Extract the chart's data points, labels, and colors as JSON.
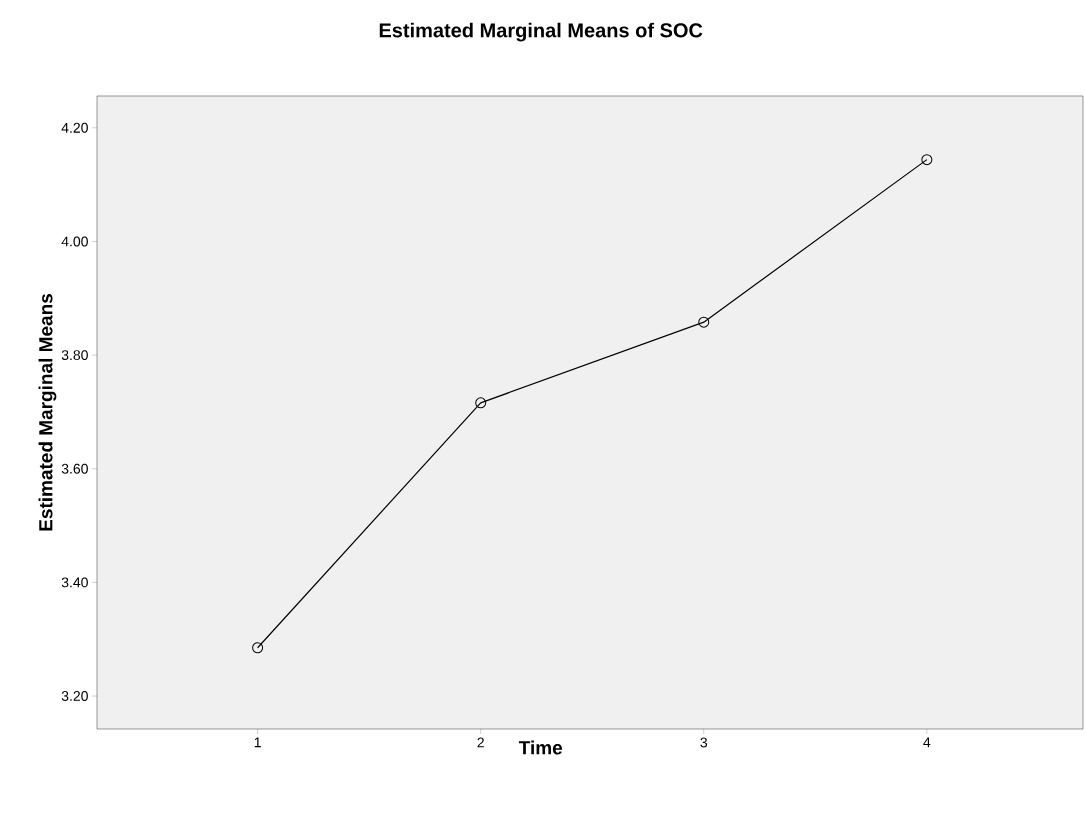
{
  "chart_data": {
    "type": "line",
    "title": "Estimated Marginal Means of SOC",
    "xlabel": "Time",
    "ylabel": "Estimated Marginal Means",
    "categories": [
      "1",
      "2",
      "3",
      "4"
    ],
    "values": [
      3.285,
      3.716,
      3.858,
      4.144
    ],
    "color": "#000000",
    "marker": "circle",
    "line_style": "solid",
    "grid": false,
    "ylim": [
      3.142,
      4.256
    ],
    "yticks": [
      {
        "value": 3.2,
        "label": "3.20"
      },
      {
        "value": 3.4,
        "label": "3.40"
      },
      {
        "value": 3.6,
        "label": "3.60"
      },
      {
        "value": 3.8,
        "label": "3.80"
      },
      {
        "value": 4.0,
        "label": "4.00"
      },
      {
        "value": 4.2,
        "label": "4.20"
      }
    ]
  }
}
